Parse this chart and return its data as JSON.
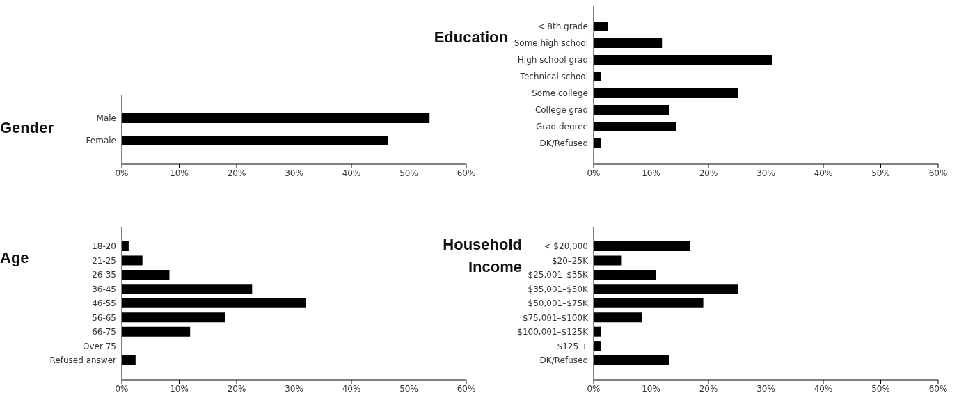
{
  "chart_data": [
    {
      "type": "bar",
      "orientation": "horizontal",
      "title": "Gender",
      "categories": [
        "Male",
        "Female"
      ],
      "values": [
        53.6,
        46.4
      ],
      "color": "#000000",
      "xlim": [
        0,
        60
      ],
      "xticks": [
        {
          "value": 0,
          "label": "0%"
        },
        {
          "value": 10,
          "label": "10%"
        },
        {
          "value": 20,
          "label": "20%"
        },
        {
          "value": 30,
          "label": "30%"
        },
        {
          "value": 40,
          "label": "40%"
        },
        {
          "value": 50,
          "label": "50%"
        },
        {
          "value": 60,
          "label": "60%"
        }
      ],
      "grid": false,
      "legend": false
    },
    {
      "type": "bar",
      "orientation": "horizontal",
      "title": "Education",
      "categories": [
        "< 8th grade",
        "Some high school",
        "High school grad",
        "Technical school",
        "Some college",
        "College grad",
        "Grad degree",
        "DK/Refused"
      ],
      "values": [
        2.5,
        11.9,
        31.1,
        1.3,
        25.1,
        13.2,
        14.4,
        1.3
      ],
      "color": "#000000",
      "xlim": [
        0,
        60
      ],
      "xticks": [
        {
          "value": 0,
          "label": "0%"
        },
        {
          "value": 10,
          "label": "10%"
        },
        {
          "value": 20,
          "label": "20%"
        },
        {
          "value": 30,
          "label": "30%"
        },
        {
          "value": 40,
          "label": "40%"
        },
        {
          "value": 50,
          "label": "50%"
        },
        {
          "value": 60,
          "label": "60%"
        }
      ],
      "grid": false,
      "legend": false
    },
    {
      "type": "bar",
      "orientation": "horizontal",
      "title": "Age",
      "categories": [
        "18-20",
        "21-25",
        "26-35",
        "36-45",
        "46-55",
        "56-65",
        "66-75",
        "Over 75",
        "Refused answer"
      ],
      "values": [
        1.2,
        3.6,
        8.3,
        22.7,
        32.1,
        18.0,
        11.9,
        0,
        2.4
      ],
      "color": "#000000",
      "xlim": [
        0,
        60
      ],
      "xticks": [
        {
          "value": 0,
          "label": "0%"
        },
        {
          "value": 10,
          "label": "10%"
        },
        {
          "value": 20,
          "label": "20%"
        },
        {
          "value": 30,
          "label": "30%"
        },
        {
          "value": 40,
          "label": "40%"
        },
        {
          "value": 50,
          "label": "50%"
        },
        {
          "value": 60,
          "label": "60%"
        }
      ],
      "grid": false,
      "legend": false
    },
    {
      "type": "bar",
      "orientation": "horizontal",
      "title": "Household Income",
      "categories": [
        "< $20,000",
        "$20–25K",
        "$25,001–$35K",
        "$35,001–$50K",
        "$50,001–$75K",
        "$75,001–$100K",
        "$100,001–$125K",
        "$125 +",
        "DK/Refused"
      ],
      "values": [
        16.8,
        4.9,
        10.8,
        25.1,
        19.1,
        8.4,
        1.3,
        1.3,
        13.2
      ],
      "color": "#000000",
      "xlim": [
        0,
        60
      ],
      "xticks": [
        {
          "value": 0,
          "label": "0%"
        },
        {
          "value": 10,
          "label": "10%"
        },
        {
          "value": 20,
          "label": "20%"
        },
        {
          "value": 30,
          "label": "30%"
        },
        {
          "value": 40,
          "label": "40%"
        },
        {
          "value": 50,
          "label": "50%"
        },
        {
          "value": 60,
          "label": "60%"
        }
      ],
      "grid": false,
      "legend": false
    }
  ]
}
